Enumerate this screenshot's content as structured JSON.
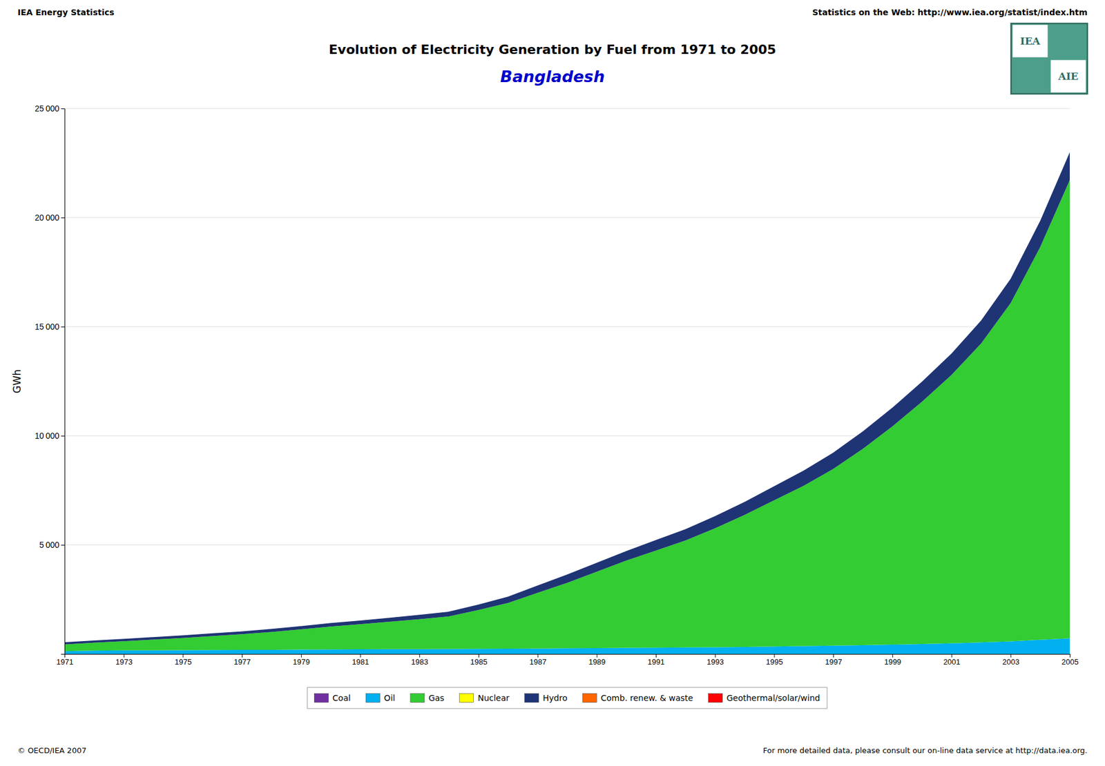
{
  "chart_data": {
    "type": "area",
    "stacked": true,
    "title": "Evolution of Electricity Generation by Fuel from 1971 to 2005",
    "subtitle": "Bangladesh",
    "ylabel": "GWh",
    "annotations": [
      "IEA Energy Statistics",
      "Statistics on the Web: http://www.iea.org/statist/index.htm",
      "© OECD/IEA 2007",
      "For more detailed data, please consult our on-line data service at http://data.iea.org.",
      "IEA",
      "AIE"
    ],
    "x": [
      1971,
      1972,
      1973,
      1974,
      1975,
      1976,
      1977,
      1978,
      1979,
      1980,
      1981,
      1982,
      1983,
      1984,
      1985,
      1986,
      1987,
      1988,
      1989,
      1990,
      1991,
      1992,
      1993,
      1994,
      1995,
      1996,
      1997,
      1998,
      1999,
      2000,
      2001,
      2002,
      2003,
      2004,
      2005
    ],
    "xlim": [
      1971,
      2005
    ],
    "xticks": [
      1971,
      1973,
      1975,
      1977,
      1979,
      1981,
      1983,
      1985,
      1987,
      1989,
      1991,
      1993,
      1995,
      1997,
      1999,
      2001,
      2003,
      2005
    ],
    "ylim": [
      0,
      25000
    ],
    "yticks": [
      {
        "value": 5000,
        "label": "5 000"
      },
      {
        "value": 10000,
        "label": "10 000"
      },
      {
        "value": 15000,
        "label": "15 000"
      },
      {
        "value": 20000,
        "label": "20 000"
      },
      {
        "value": 25000,
        "label": "25 000"
      }
    ],
    "grid": true,
    "legend": "bottom",
    "series": [
      {
        "name": "Coal",
        "color": "#7030a0",
        "values": [
          0,
          0,
          0,
          0,
          0,
          0,
          0,
          0,
          0,
          0,
          0,
          0,
          0,
          0,
          0,
          0,
          0,
          0,
          0,
          0,
          0,
          0,
          0,
          0,
          0,
          0,
          0,
          0,
          0,
          0,
          0,
          0,
          0,
          0,
          0
        ]
      },
      {
        "name": "Oil",
        "color": "#00b0f0",
        "values": [
          130,
          155,
          165,
          170,
          175,
          180,
          185,
          190,
          200,
          210,
          215,
          220,
          225,
          230,
          235,
          240,
          250,
          260,
          270,
          280,
          290,
          300,
          310,
          320,
          340,
          360,
          380,
          400,
          430,
          460,
          490,
          530,
          580,
          650,
          720
        ]
      },
      {
        "name": "Gas",
        "color": "#33cc33",
        "values": [
          310,
          360,
          420,
          490,
          560,
          640,
          720,
          820,
          930,
          1050,
          1150,
          1260,
          1370,
          1490,
          1780,
          2100,
          2550,
          3000,
          3500,
          4000,
          4450,
          4900,
          5450,
          6050,
          6700,
          7350,
          8100,
          9000,
          10000,
          11100,
          12300,
          13700,
          15500,
          18000,
          21000
        ]
      },
      {
        "name": "Nuclear",
        "color": "#ffff00",
        "values": [
          0,
          0,
          0,
          0,
          0,
          0,
          0,
          0,
          0,
          0,
          0,
          0,
          0,
          0,
          0,
          0,
          0,
          0,
          0,
          0,
          0,
          0,
          0,
          0,
          0,
          0,
          0,
          0,
          0,
          0,
          0,
          0,
          0,
          0,
          0
        ]
      },
      {
        "name": "Hydro",
        "color": "#1f3474",
        "values": [
          100,
          105,
          110,
          115,
          120,
          125,
          130,
          140,
          150,
          160,
          170,
          180,
          200,
          220,
          250,
          290,
          340,
          380,
          410,
          440,
          480,
          520,
          560,
          600,
          650,
          700,
          750,
          800,
          860,
          920,
          980,
          1050,
          1120,
          1200,
          1280
        ]
      },
      {
        "name": "Comb. renew. & waste",
        "color": "#ff6600",
        "values": [
          0,
          0,
          0,
          0,
          0,
          0,
          0,
          0,
          0,
          0,
          0,
          0,
          0,
          0,
          0,
          0,
          0,
          0,
          0,
          0,
          0,
          0,
          0,
          0,
          0,
          0,
          0,
          0,
          0,
          0,
          0,
          0,
          0,
          0,
          0
        ]
      },
      {
        "name": "Geothermal/solar/wind",
        "color": "#ff0000",
        "values": [
          0,
          0,
          0,
          0,
          0,
          0,
          0,
          0,
          0,
          0,
          0,
          0,
          0,
          0,
          0,
          0,
          0,
          0,
          0,
          0,
          0,
          0,
          0,
          0,
          0,
          0,
          0,
          0,
          0,
          0,
          0,
          0,
          0,
          0,
          0
        ]
      }
    ]
  }
}
